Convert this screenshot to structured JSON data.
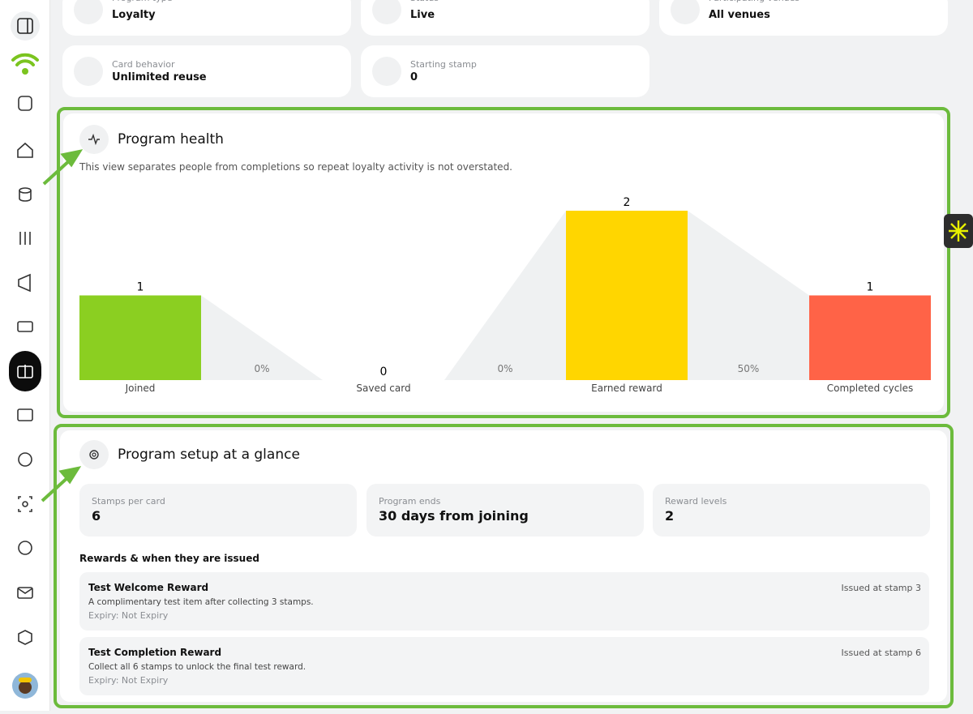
{
  "info_cards": [
    {
      "label": "Program type",
      "value": "Loyalty"
    },
    {
      "label": "Status",
      "value": "Live"
    },
    {
      "label": "Participating venues",
      "value": "All venues"
    },
    {
      "label": "Card behavior",
      "value": "Unlimited reuse"
    },
    {
      "label": "Starting stamp",
      "value": "0"
    }
  ],
  "program_health": {
    "title": "Program health",
    "description": "This view separates people from completions so repeat loyalty activity is not overstated."
  },
  "chart_data": {
    "type": "funnel",
    "categories": [
      "Joined",
      "Saved card",
      "Earned reward",
      "Completed cycles"
    ],
    "values": [
      1,
      0,
      2,
      1
    ],
    "colors": [
      "#8bcf21",
      "#cccccc",
      "#ffd600",
      "#ff6347"
    ],
    "conversions": [
      0,
      0,
      50
    ],
    "conversion_labels": [
      "0%",
      "0%",
      "50%"
    ]
  },
  "setup": {
    "title": "Program setup at a glance",
    "stats": [
      {
        "label": "Stamps per card",
        "value": "6"
      },
      {
        "label": "Program ends",
        "value": "30 days from joining"
      },
      {
        "label": "Reward levels",
        "value": "2"
      }
    ],
    "rewards_heading": "Rewards & when they are issued",
    "rewards": [
      {
        "name": "Test Welcome Reward",
        "description": "A complimentary test item after collecting 3 stamps.",
        "expiry": "Expiry: Not Expiry",
        "issued": "Issued at stamp 3"
      },
      {
        "name": "Test Completion Reward",
        "description": "Collect all 6 stamps to unlock the final test reward.",
        "expiry": "Expiry: Not Expiry",
        "issued": "Issued at stamp 6"
      }
    ]
  }
}
